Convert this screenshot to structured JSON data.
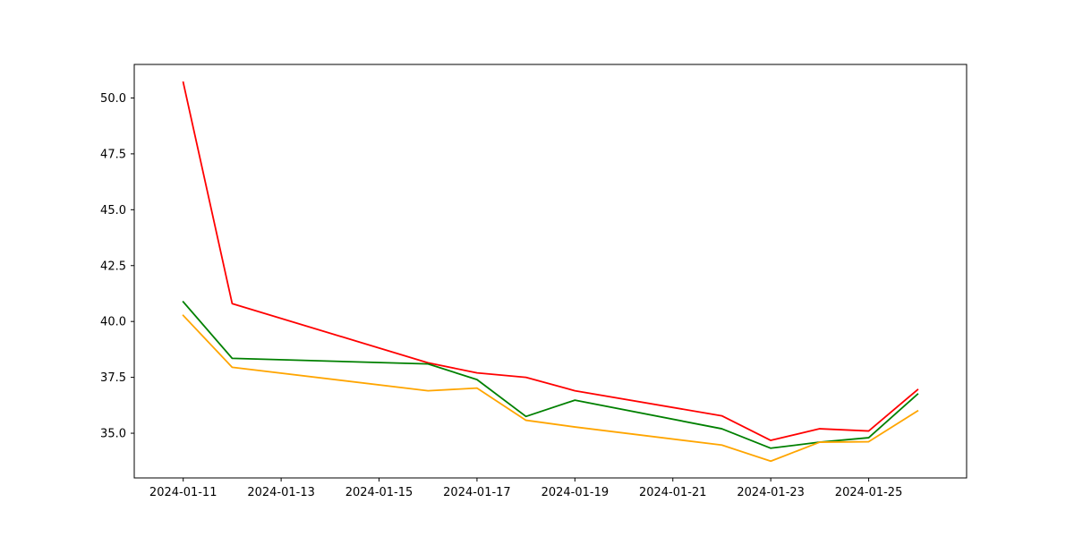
{
  "chart_data": {
    "type": "line",
    "title": "",
    "xlabel": "",
    "ylabel": "",
    "x": [
      "2024-01-11",
      "2024-01-12",
      "2024-01-16",
      "2024-01-17",
      "2024-01-18",
      "2024-01-19",
      "2024-01-22",
      "2024-01-23",
      "2024-01-24",
      "2024-01-25",
      "2024-01-26"
    ],
    "xticks": [
      "2024-01-11",
      "2024-01-13",
      "2024-01-15",
      "2024-01-17",
      "2024-01-19",
      "2024-01-21",
      "2024-01-23",
      "2024-01-25"
    ],
    "xlim": [
      "2024-01-10",
      "2024-01-27"
    ],
    "yticks": [
      "35.0",
      "37.5",
      "40.0",
      "42.5",
      "45.0",
      "47.5",
      "50.0"
    ],
    "ylim": [
      33.0,
      51.5
    ],
    "grid": false,
    "legend": "none",
    "series": [
      {
        "color": "#ff0000",
        "values": [
          50.7,
          40.8,
          38.15,
          37.7,
          37.5,
          36.9,
          35.78,
          34.68,
          35.2,
          35.1,
          36.95
        ]
      },
      {
        "color": "#008000",
        "values": [
          40.88,
          38.35,
          38.1,
          37.4,
          35.75,
          36.48,
          35.2,
          34.33,
          34.6,
          34.8,
          36.75
        ]
      },
      {
        "color": "#ffa500",
        "values": [
          40.27,
          37.95,
          36.9,
          37.02,
          35.58,
          35.28,
          34.47,
          33.75,
          34.6,
          34.62,
          36.0
        ]
      }
    ]
  }
}
